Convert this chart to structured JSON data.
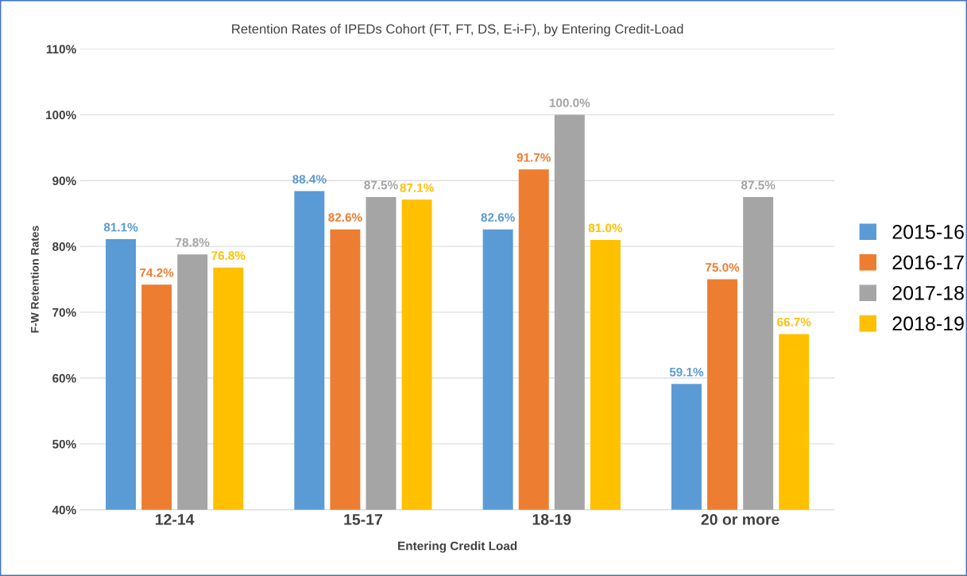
{
  "chart_data": {
    "type": "bar",
    "title": "Retention Rates of IPEDs Cohort (FT, FT, DS, E-i-F), by Entering Credit-Load",
    "xlabel": "Entering Credit Load",
    "ylabel": "F-W Retention Rates",
    "categories": [
      "12-14",
      "15-17",
      "18-19",
      "20 or more"
    ],
    "series": [
      {
        "name": "2015-16",
        "color": "#5b9bd5",
        "values": [
          81.1,
          88.4,
          82.6,
          59.1
        ],
        "value_labels": [
          "81.1%",
          "88.4%",
          "82.6%",
          "59.1%"
        ]
      },
      {
        "name": "2016-17",
        "color": "#ed7d31",
        "values": [
          74.2,
          82.6,
          91.7,
          75.0
        ],
        "value_labels": [
          "74.2%",
          "82.6%",
          "91.7%",
          "75.0%"
        ]
      },
      {
        "name": "2017-18",
        "color": "#a5a5a5",
        "values": [
          78.8,
          87.5,
          100.0,
          87.5
        ],
        "value_labels": [
          "78.8%",
          "87.5%",
          "100.0%",
          "87.5%"
        ]
      },
      {
        "name": "2018-19",
        "color": "#ffc000",
        "values": [
          76.8,
          87.1,
          81.0,
          66.7
        ],
        "value_labels": [
          "76.8%",
          "87.1%",
          "81.0%",
          "66.7%"
        ]
      }
    ],
    "ylim": [
      40,
      110
    ],
    "yticks": [
      {
        "value": 40,
        "label": "40%"
      },
      {
        "value": 50,
        "label": "50%"
      },
      {
        "value": 60,
        "label": "60%"
      },
      {
        "value": 70,
        "label": "70%"
      },
      {
        "value": 80,
        "label": "80%"
      },
      {
        "value": 90,
        "label": "90%"
      },
      {
        "value": 100,
        "label": "100%"
      },
      {
        "value": 110,
        "label": "110%"
      }
    ],
    "grid": "y",
    "legend": "right"
  }
}
